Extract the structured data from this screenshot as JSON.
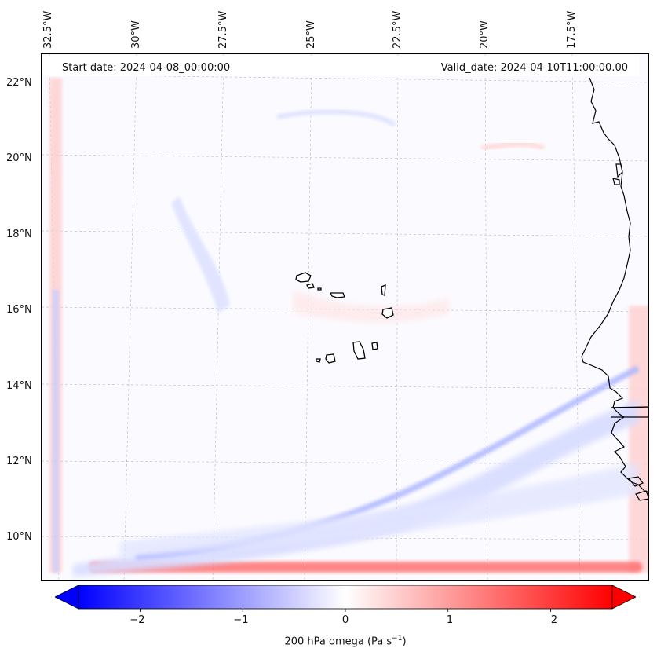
{
  "map": {
    "start_date": "Start date: 2024-04-08_00:00:00",
    "valid_date": "Valid_date: 2024-04-10T11:00:00.00",
    "lon_labels": [
      "32.5°W",
      "30°W",
      "27.5°W",
      "25°W",
      "22.5°W",
      "20°W",
      "17.5°W"
    ],
    "lat_labels": [
      "22°N",
      "20°N",
      "18°N",
      "16°N",
      "14°N",
      "12°N",
      "10°N"
    ],
    "field": "200 hPa omega",
    "features": [
      "cape-verde-islands",
      "west-africa-coastline",
      "gridlines"
    ]
  },
  "colorbar": {
    "label_main": "200 hPa omega (Pa s",
    "label_sup": "−1",
    "label_end": ")",
    "ticks": [
      "−2",
      "−1",
      "0",
      "1",
      "2"
    ],
    "tick_values": [
      -2,
      -1,
      0,
      1,
      2
    ],
    "range": [
      -2.6,
      2.6
    ],
    "colormap": "bwr",
    "extend": "both",
    "colors": {
      "min": "#0000ff",
      "mid": "#ffffff",
      "max": "#ff0000"
    }
  }
}
